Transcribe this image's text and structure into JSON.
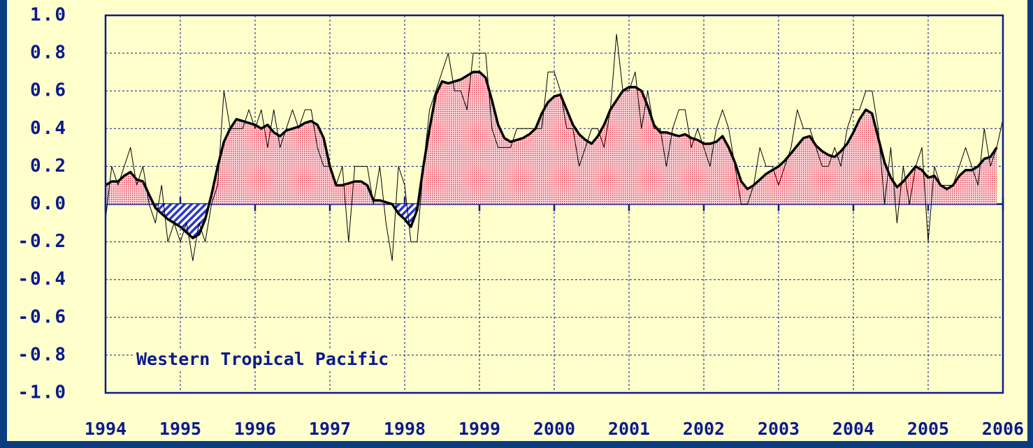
{
  "chart_data": {
    "type": "line",
    "annotation": "Western Tropical Pacific",
    "xlim": [
      1994,
      2006
    ],
    "xticks": [
      1994,
      1995,
      1996,
      1997,
      1998,
      1999,
      2000,
      2001,
      2002,
      2003,
      2004,
      2005,
      2006
    ],
    "ylim": [
      -1,
      1
    ],
    "yticks": [
      {
        "value": 1,
        "label": "1.0"
      },
      0.8,
      0.6,
      0.4,
      0.2,
      {
        "value": 0,
        "label": "0.0"
      },
      -0.2,
      -0.4,
      -0.6,
      -0.8,
      {
        "value": -1,
        "label": "-1.0"
      }
    ],
    "grid": true,
    "positive_fill": "#e23b4e",
    "negative_fill": "#2a35c8",
    "x": [
      1994,
      1994.083,
      1994.167,
      1994.25,
      1994.333,
      1994.417,
      1994.5,
      1994.583,
      1994.667,
      1994.75,
      1994.833,
      1994.917,
      1995,
      1995.083,
      1995.167,
      1995.25,
      1995.333,
      1995.417,
      1995.5,
      1995.583,
      1995.667,
      1995.75,
      1995.833,
      1995.917,
      1996,
      1996.083,
      1996.167,
      1996.25,
      1996.333,
      1996.417,
      1996.5,
      1996.583,
      1996.667,
      1996.75,
      1996.833,
      1996.917,
      1997,
      1997.083,
      1997.167,
      1997.25,
      1997.333,
      1997.417,
      1997.5,
      1997.583,
      1997.667,
      1997.75,
      1997.833,
      1997.917,
      1998,
      1998.083,
      1998.167,
      1998.25,
      1998.333,
      1998.417,
      1998.5,
      1998.583,
      1998.667,
      1998.75,
      1998.833,
      1998.917,
      1999,
      1999.083,
      1999.167,
      1999.25,
      1999.333,
      1999.417,
      1999.5,
      1999.583,
      1999.667,
      1999.75,
      1999.833,
      1999.917,
      2000,
      2000.083,
      2000.167,
      2000.25,
      2000.333,
      2000.417,
      2000.5,
      2000.583,
      2000.667,
      2000.75,
      2000.833,
      2000.917,
      2001,
      2001.083,
      2001.167,
      2001.25,
      2001.333,
      2001.417,
      2001.5,
      2001.583,
      2001.667,
      2001.75,
      2001.833,
      2001.917,
      2002,
      2002.083,
      2002.167,
      2002.25,
      2002.333,
      2002.417,
      2002.5,
      2002.583,
      2002.667,
      2002.75,
      2002.833,
      2002.917,
      2003,
      2003.083,
      2003.167,
      2003.25,
      2003.333,
      2003.417,
      2003.5,
      2003.583,
      2003.667,
      2003.75,
      2003.833,
      2003.917,
      2004,
      2004.083,
      2004.167,
      2004.25,
      2004.333,
      2004.417,
      2004.5,
      2004.583,
      2004.667,
      2004.75,
      2004.833,
      2004.917,
      2005,
      2005.083,
      2005.167,
      2005.25,
      2005.333,
      2005.417,
      2005.5,
      2005.583,
      2005.667,
      2005.75,
      2005.833,
      2005.917,
      2006
    ],
    "series": [
      {
        "color": "#000000",
        "width": 1,
        "values": [
          -0.08,
          0.2,
          0.1,
          0.2,
          0.3,
          0.1,
          0.2,
          0.0,
          -0.1,
          0.1,
          -0.2,
          -0.1,
          -0.2,
          -0.1,
          -0.3,
          -0.1,
          -0.2,
          0.0,
          0.1,
          0.6,
          0.4,
          0.4,
          0.4,
          0.5,
          0.4,
          0.5,
          0.3,
          0.5,
          0.3,
          0.4,
          0.5,
          0.4,
          0.5,
          0.5,
          0.3,
          0.2,
          0.2,
          0.1,
          0.2,
          -0.2,
          0.2,
          0.2,
          0.2,
          0.0,
          0.2,
          -0.1,
          -0.3,
          0.2,
          0.1,
          -0.2,
          -0.2,
          0.2,
          0.5,
          0.6,
          0.7,
          0.8,
          0.6,
          0.6,
          0.5,
          0.8,
          0.8,
          0.8,
          0.4,
          0.3,
          0.3,
          0.3,
          0.4,
          0.4,
          0.4,
          0.4,
          0.4,
          0.7,
          0.7,
          0.6,
          0.4,
          0.4,
          0.2,
          0.3,
          0.4,
          0.4,
          0.3,
          0.5,
          0.9,
          0.6,
          0.6,
          0.7,
          0.4,
          0.6,
          0.4,
          0.4,
          0.2,
          0.4,
          0.5,
          0.5,
          0.3,
          0.4,
          0.3,
          0.2,
          0.4,
          0.5,
          0.4,
          0.2,
          0.0,
          0.0,
          0.1,
          0.3,
          0.2,
          0.2,
          0.1,
          0.2,
          0.3,
          0.5,
          0.4,
          0.4,
          0.3,
          0.2,
          0.2,
          0.3,
          0.2,
          0.4,
          0.5,
          0.5,
          0.6,
          0.6,
          0.4,
          0.0,
          0.3,
          -0.1,
          0.2,
          0.0,
          0.2,
          0.3,
          -0.2,
          0.2,
          0.1,
          0.1,
          0.1,
          0.2,
          0.3,
          0.2,
          0.1,
          0.4,
          0.2,
          0.3,
          0.45
        ]
      },
      {
        "color": "#000000",
        "width": 3.5,
        "fill": true,
        "values": [
          0.1,
          0.12,
          0.12,
          0.15,
          0.17,
          0.13,
          0.12,
          0.05,
          -0.02,
          -0.05,
          -0.08,
          -0.1,
          -0.12,
          -0.15,
          -0.18,
          -0.16,
          -0.08,
          0.05,
          0.2,
          0.33,
          0.4,
          0.45,
          0.44,
          0.43,
          0.42,
          0.4,
          0.42,
          0.38,
          0.36,
          0.39,
          0.4,
          0.41,
          0.43,
          0.44,
          0.42,
          0.35,
          0.2,
          0.1,
          0.1,
          0.11,
          0.12,
          0.12,
          0.1,
          0.02,
          0.02,
          0.01,
          0.0,
          -0.05,
          -0.08,
          -0.12,
          -0.03,
          0.2,
          0.4,
          0.58,
          0.65,
          0.64,
          0.65,
          0.66,
          0.68,
          0.7,
          0.7,
          0.67,
          0.55,
          0.42,
          0.35,
          0.33,
          0.34,
          0.35,
          0.37,
          0.4,
          0.48,
          0.54,
          0.57,
          0.58,
          0.5,
          0.42,
          0.37,
          0.34,
          0.32,
          0.36,
          0.42,
          0.5,
          0.55,
          0.6,
          0.62,
          0.62,
          0.6,
          0.52,
          0.42,
          0.38,
          0.38,
          0.37,
          0.36,
          0.37,
          0.35,
          0.34,
          0.32,
          0.32,
          0.33,
          0.36,
          0.3,
          0.22,
          0.12,
          0.08,
          0.1,
          0.13,
          0.16,
          0.18,
          0.2,
          0.23,
          0.27,
          0.31,
          0.35,
          0.36,
          0.31,
          0.28,
          0.26,
          0.25,
          0.28,
          0.32,
          0.38,
          0.45,
          0.5,
          0.48,
          0.35,
          0.22,
          0.14,
          0.09,
          0.12,
          0.16,
          0.2,
          0.18,
          0.14,
          0.15,
          0.1,
          0.08,
          0.1,
          0.15,
          0.18,
          0.18,
          0.2,
          0.24,
          0.25,
          0.3,
          null
        ]
      }
    ]
  }
}
